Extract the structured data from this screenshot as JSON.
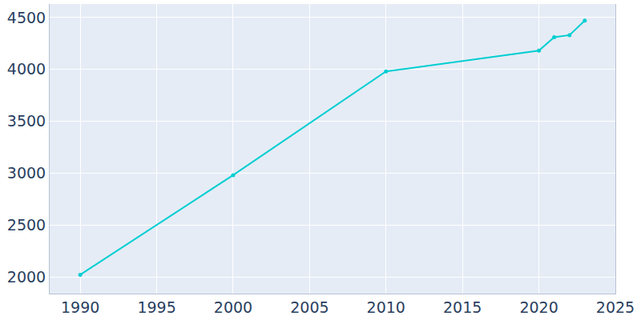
{
  "chart_data": {
    "type": "line",
    "x": [
      1990,
      2000,
      2010,
      2020,
      2021,
      2022,
      2023
    ],
    "values": [
      2020,
      2980,
      3980,
      4180,
      4310,
      4330,
      4470
    ],
    "color": "#00CED1",
    "marker": "circle",
    "xlim": [
      1988,
      2025
    ],
    "xticks": [
      1990,
      1995,
      2000,
      2005,
      2010,
      2015,
      2020,
      2025
    ],
    "ylim": [
      1838,
      4630
    ],
    "yticks": [
      2000,
      2500,
      3000,
      3500,
      4000,
      4500
    ],
    "grid": true
  }
}
